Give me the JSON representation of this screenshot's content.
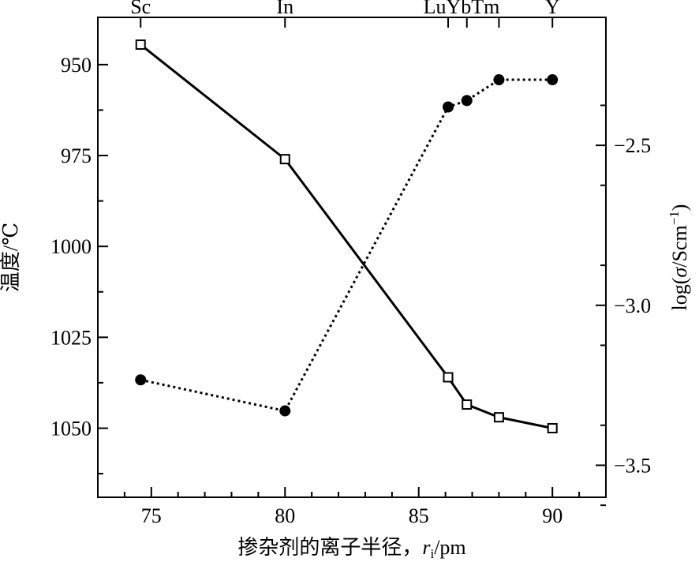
{
  "chart_data": {
    "type": "line",
    "xlabel": "掺杂剂的离子半径，",
    "xlabel_var": "r",
    "xlabel_sub": "i",
    "xlabel_unit": "/pm",
    "ylabel_left": "温度/℃",
    "ylabel_right_prefix": "log(",
    "ylabel_right_var": "σ",
    "ylabel_right_mid": "/Scm",
    "ylabel_right_sup": "−1",
    "ylabel_right_suffix": ")",
    "xlim": [
      73,
      92
    ],
    "x_ticks": [
      75,
      80,
      85,
      90
    ],
    "x_tick_labels": [
      "75",
      "80",
      "85",
      "90"
    ],
    "ylim_left": [
      1069,
      937
    ],
    "y_left_ticks": [
      950,
      975,
      1000,
      1025,
      1050
    ],
    "y_left_tick_labels": [
      "950",
      "975",
      "1000",
      "1025",
      "1050"
    ],
    "ylim_right": [
      -2.1,
      -3.6
    ],
    "y_right_ticks": [
      -2.5,
      -3.0,
      -3.5
    ],
    "y_right_tick_labels": [
      "−2.5",
      "−3.0",
      "−3.5"
    ],
    "top_labels": [
      {
        "x": 74.6,
        "label": "Sc"
      },
      {
        "x": 80.0,
        "label": "In"
      },
      {
        "x": 86.6,
        "label": "LuYbTm"
      },
      {
        "x": 90.0,
        "label": "Y"
      }
    ],
    "series": [
      {
        "axis": "left",
        "style": "solid",
        "marker": "open-square",
        "points": [
          {
            "x": 74.6,
            "y": 944.5
          },
          {
            "x": 80.0,
            "y": 976
          },
          {
            "x": 86.1,
            "y": 1036
          },
          {
            "x": 86.8,
            "y": 1043.5
          },
          {
            "x": 88.0,
            "y": 1047
          },
          {
            "x": 90.0,
            "y": 1050
          }
        ]
      },
      {
        "axis": "right",
        "style": "dotted",
        "marker": "filled-circle",
        "points": [
          {
            "x": 74.6,
            "y": -3.233
          },
          {
            "x": 80.0,
            "y": -3.33
          },
          {
            "x": 86.1,
            "y": -2.38
          },
          {
            "x": 86.8,
            "y": -2.36
          },
          {
            "x": 88.0,
            "y": -2.295
          },
          {
            "x": 90.0,
            "y": -2.295
          }
        ]
      }
    ],
    "grid": false,
    "colors": {
      "line": "#000000",
      "background": "#ffffff"
    }
  }
}
